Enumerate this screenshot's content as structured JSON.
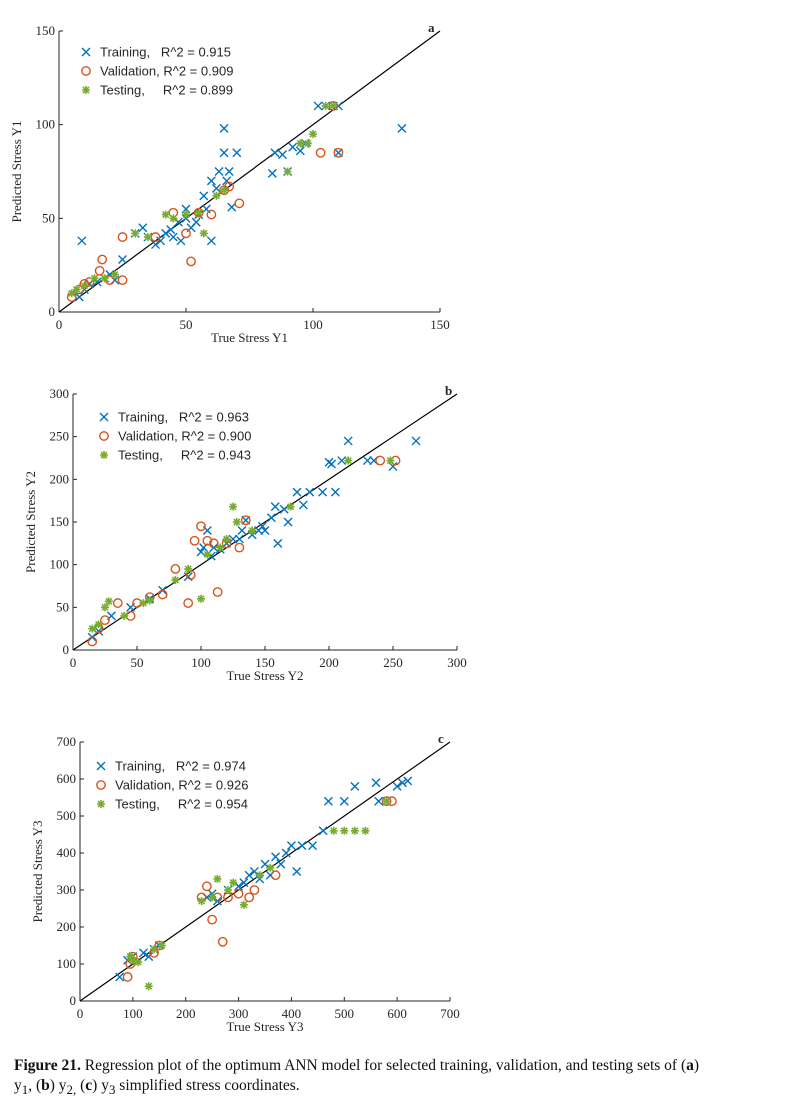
{
  "chart_data": [
    {
      "type": "scatter",
      "panel_label": "a",
      "xlabel": "True Stress Y1",
      "ylabel": "Predicted Stress Y1",
      "xlim": [
        0,
        150
      ],
      "ylim": [
        0,
        150
      ],
      "xticks": [
        0,
        50,
        100,
        150
      ],
      "yticks": [
        0,
        50,
        100,
        150
      ],
      "legend": "upper left",
      "series": [
        {
          "name": "Training,   R^2 = 0.915",
          "color": "#0072bd",
          "marker": "x",
          "x": [
            8,
            10,
            12,
            15,
            18,
            20,
            22,
            25,
            9,
            30,
            33,
            35,
            38,
            40,
            42,
            44,
            45,
            47,
            48,
            50,
            50,
            52,
            54,
            55,
            57,
            58,
            60,
            60,
            62,
            63,
            65,
            65,
            66,
            67,
            70,
            68,
            85,
            84,
            88,
            90,
            92,
            95,
            97,
            102,
            105,
            108,
            110,
            110,
            135
          ],
          "values": [
            8,
            12,
            15,
            16,
            18,
            20,
            17,
            28,
            38,
            42,
            45,
            40,
            36,
            38,
            42,
            44,
            40,
            48,
            38,
            50,
            55,
            45,
            48,
            52,
            62,
            55,
            38,
            70,
            66,
            75,
            98,
            85,
            70,
            75,
            85,
            56,
            85,
            74,
            84,
            75,
            88,
            86,
            90,
            110,
            110,
            110,
            110,
            85,
            98
          ]
        },
        {
          "name": "Validation, R^2 = 0.909",
          "color": "#d95319",
          "marker": "o",
          "x": [
            5,
            8,
            10,
            12,
            16,
            17,
            20,
            25,
            25,
            38,
            45,
            50,
            52,
            55,
            60,
            65,
            67,
            71,
            103,
            110,
            108
          ],
          "values": [
            8,
            12,
            15,
            16,
            22,
            28,
            17,
            40,
            17,
            40,
            53,
            42,
            27,
            53,
            52,
            65,
            67,
            58,
            85,
            85,
            110
          ]
        },
        {
          "name": "Testing,     R^2 = 0.899",
          "color": "#77ac30",
          "marker": "*",
          "x": [
            5,
            7,
            10,
            14,
            18,
            22,
            30,
            35,
            42,
            45,
            50,
            55,
            57,
            62,
            65,
            90,
            95,
            98,
            100,
            105,
            108
          ],
          "values": [
            10,
            12,
            14,
            18,
            18,
            20,
            42,
            40,
            52,
            50,
            52,
            53,
            42,
            62,
            65,
            75,
            90,
            90,
            95,
            110,
            110
          ]
        }
      ]
    },
    {
      "type": "scatter",
      "panel_label": "b",
      "xlabel": "True Stress Y2",
      "ylabel": "Predicted Stress Y2",
      "xlim": [
        0,
        300
      ],
      "ylim": [
        0,
        300
      ],
      "xticks": [
        0,
        50,
        100,
        150,
        200,
        250,
        300
      ],
      "yticks": [
        0,
        50,
        100,
        150,
        200,
        250,
        300
      ],
      "legend": "upper left",
      "series": [
        {
          "name": "Training,   R^2 = 0.963",
          "color": "#0072bd",
          "marker": "x",
          "x": [
            15,
            20,
            30,
            45,
            60,
            70,
            90,
            100,
            102,
            105,
            108,
            110,
            115,
            120,
            125,
            130,
            132,
            135,
            140,
            145,
            148,
            150,
            155,
            158,
            160,
            165,
            168,
            175,
            180,
            185,
            195,
            200,
            202,
            205,
            210,
            215,
            230,
            235,
            250,
            268
          ],
          "values": [
            15,
            22,
            40,
            50,
            60,
            70,
            86,
            115,
            120,
            140,
            110,
            120,
            118,
            125,
            130,
            130,
            140,
            152,
            135,
            140,
            145,
            140,
            155,
            168,
            125,
            165,
            150,
            185,
            170,
            185,
            185,
            220,
            218,
            185,
            222,
            245,
            222,
            222,
            215,
            245
          ]
        },
        {
          "name": "Validation, R^2 = 0.900",
          "color": "#d95319",
          "marker": "o",
          "x": [
            15,
            20,
            25,
            35,
            45,
            50,
            60,
            70,
            80,
            90,
            92,
            95,
            100,
            105,
            110,
            113,
            120,
            130,
            135,
            240,
            252
          ],
          "values": [
            10,
            25,
            35,
            55,
            40,
            55,
            62,
            65,
            95,
            55,
            88,
            128,
            145,
            128,
            125,
            68,
            125,
            120,
            152,
            222,
            222
          ]
        },
        {
          "name": "Testing,     R^2 = 0.943",
          "color": "#77ac30",
          "marker": "*",
          "x": [
            15,
            20,
            25,
            28,
            40,
            55,
            60,
            80,
            90,
            100,
            105,
            115,
            120,
            125,
            128,
            140,
            170,
            215,
            248
          ],
          "values": [
            25,
            30,
            50,
            57,
            40,
            55,
            58,
            82,
            95,
            60,
            112,
            120,
            130,
            168,
            150,
            140,
            168,
            222,
            222
          ]
        }
      ]
    },
    {
      "type": "scatter",
      "panel_label": "c",
      "xlabel": "True Stress Y3",
      "ylabel": "Predicted Stress Y3",
      "xlim": [
        0,
        700
      ],
      "ylim": [
        0,
        700
      ],
      "xticks": [
        0,
        100,
        200,
        300,
        400,
        500,
        600,
        700
      ],
      "yticks": [
        0,
        100,
        200,
        300,
        400,
        500,
        600,
        700
      ],
      "legend": "upper left",
      "series": [
        {
          "name": "Training,   R^2 = 0.974",
          "color": "#0072bd",
          "marker": "x",
          "x": [
            75,
            90,
            100,
            120,
            130,
            140,
            150,
            240,
            250,
            260,
            280,
            300,
            310,
            320,
            330,
            340,
            350,
            360,
            370,
            380,
            390,
            400,
            410,
            420,
            440,
            460,
            470,
            500,
            520,
            560,
            565,
            600,
            610,
            620,
            580
          ],
          "values": [
            65,
            110,
            120,
            130,
            120,
            140,
            150,
            280,
            290,
            270,
            300,
            310,
            320,
            340,
            350,
            330,
            370,
            340,
            390,
            370,
            400,
            420,
            350,
            420,
            420,
            460,
            540,
            540,
            580,
            590,
            540,
            580,
            590,
            595,
            540
          ]
        },
        {
          "name": "Validation, R^2 = 0.926",
          "color": "#d95319",
          "marker": "o",
          "x": [
            90,
            95,
            100,
            140,
            150,
            230,
            240,
            250,
            260,
            270,
            280,
            300,
            320,
            330,
            370,
            580,
            590
          ],
          "values": [
            65,
            100,
            120,
            130,
            150,
            280,
            310,
            220,
            280,
            160,
            280,
            290,
            280,
            300,
            340,
            540,
            540
          ]
        },
        {
          "name": "Testing,     R^2 = 0.954",
          "color": "#77ac30",
          "marker": "*",
          "x": [
            95,
            100,
            110,
            130,
            140,
            155,
            230,
            250,
            260,
            280,
            290,
            310,
            340,
            360,
            480,
            500,
            520,
            540,
            580
          ],
          "values": [
            120,
            110,
            105,
            40,
            140,
            150,
            270,
            280,
            330,
            300,
            320,
            260,
            340,
            360,
            460,
            460,
            460,
            460,
            540
          ]
        }
      ]
    }
  ],
  "caption": {
    "parts": [
      "Figure 21.",
      "  Regression plot of the optimum ANN model for selected training, validation, and testing sets of (",
      "a",
      ")",
      "y",
      "1",
      ", (",
      "b",
      ") y",
      "2,",
      " (",
      "c",
      ") y",
      "3",
      " simplified stress coordinates."
    ]
  }
}
